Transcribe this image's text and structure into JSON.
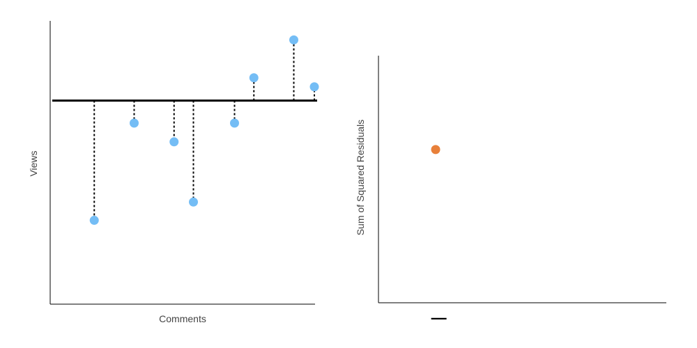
{
  "chart_data": [
    {
      "type": "scatter",
      "title": "",
      "xlabel": "Comments",
      "ylabel": "Views",
      "xlim": [
        0,
        100
      ],
      "ylim": [
        0,
        100
      ],
      "fit_line": {
        "y": 69.6
      },
      "x": [
        9,
        25.5,
        42,
        50,
        67,
        75,
        91.5,
        100
      ],
      "y": [
        16.5,
        59.6,
        51.3,
        24.6,
        59.6,
        79.7,
        96.5,
        75.7
      ],
      "point_color": "#74bdf5",
      "grid": false,
      "legend": "none"
    },
    {
      "type": "scatter",
      "title": "",
      "xlabel": "",
      "ylabel": "Sum of Squared Residuals",
      "xlim": [
        0,
        100
      ],
      "ylim": [
        0,
        100
      ],
      "x": [
        20
      ],
      "y": [
        62
      ],
      "point_color": "#e8803a",
      "x_marker": "—",
      "grid": false,
      "legend": "none"
    }
  ]
}
